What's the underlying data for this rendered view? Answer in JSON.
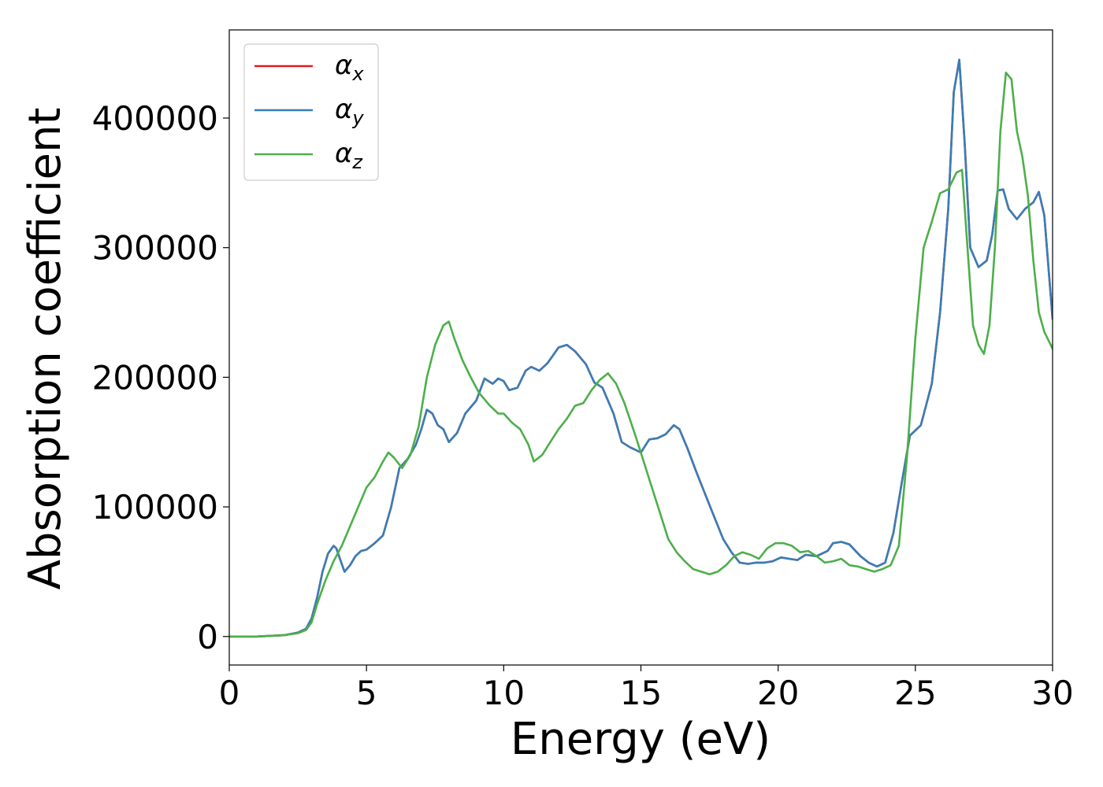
{
  "chart_data": {
    "type": "line",
    "title": "",
    "xlabel": "Energy (eV)",
    "ylabel": "Absorption coefficient",
    "xlim": [
      0,
      30
    ],
    "ylim": [
      -22000,
      468000
    ],
    "xticks": [
      0,
      5,
      10,
      15,
      20,
      25,
      30
    ],
    "xtick_labels": [
      "0",
      "5",
      "10",
      "15",
      "20",
      "25",
      "30"
    ],
    "yticks": [
      0,
      100000,
      200000,
      300000,
      400000
    ],
    "ytick_labels": [
      "0",
      "100000",
      "200000",
      "300000",
      "400000"
    ],
    "grid": false,
    "legend_position": "top-left",
    "series": [
      {
        "name": "α_x",
        "legend_base": "α",
        "legend_sub": "x",
        "color": "#e41a1c",
        "x": [
          0,
          1,
          2,
          2.5,
          2.8,
          3.0,
          3.2,
          3.4,
          3.6,
          3.8,
          3.9,
          4.0,
          4.2,
          4.4,
          4.6,
          4.8,
          5.0,
          5.3,
          5.6,
          5.9,
          6.2,
          6.5,
          6.8,
          7.0,
          7.2,
          7.4,
          7.6,
          7.8,
          8.0,
          8.3,
          8.6,
          9.0,
          9.3,
          9.6,
          9.8,
          10.0,
          10.2,
          10.5,
          10.8,
          11.0,
          11.3,
          11.6,
          12.0,
          12.3,
          12.6,
          12.8,
          13.0,
          13.3,
          13.6,
          14.0,
          14.3,
          14.6,
          15.0,
          15.3,
          15.6,
          15.9,
          16.2,
          16.4,
          16.7,
          17.0,
          17.3,
          17.6,
          18.0,
          18.3,
          18.6,
          18.9,
          19.2,
          19.5,
          19.8,
          20.1,
          20.4,
          20.7,
          21.0,
          21.4,
          21.8,
          22.0,
          22.3,
          22.6,
          23.0,
          23.3,
          23.6,
          23.9,
          24.2,
          24.5,
          24.8,
          25.2,
          25.6,
          25.9,
          26.2,
          26.4,
          26.6,
          26.8,
          27.0,
          27.3,
          27.6,
          27.8,
          28.0,
          28.2,
          28.4,
          28.7,
          29.0,
          29.3,
          29.5,
          29.7,
          30.0
        ],
        "y": [
          0,
          0,
          1000,
          3000,
          6000,
          14000,
          30000,
          50000,
          64000,
          70000,
          68000,
          62000,
          50000,
          55000,
          62000,
          66000,
          67000,
          72000,
          78000,
          100000,
          130000,
          137000,
          148000,
          160000,
          175000,
          172000,
          163000,
          160000,
          150000,
          157000,
          172000,
          182000,
          199000,
          195000,
          199000,
          197000,
          190000,
          192000,
          205000,
          208000,
          205000,
          211000,
          223000,
          225000,
          220000,
          215000,
          210000,
          196000,
          192000,
          172000,
          150000,
          146000,
          142000,
          152000,
          153000,
          156000,
          163000,
          160000,
          145000,
          128000,
          112000,
          96000,
          75000,
          65000,
          57000,
          56000,
          57000,
          57000,
          58000,
          61000,
          60000,
          59000,
          63000,
          62000,
          66000,
          72000,
          73000,
          71000,
          62000,
          57000,
          54000,
          57000,
          80000,
          118000,
          155000,
          163000,
          195000,
          250000,
          330000,
          420000,
          445000,
          380000,
          300000,
          285000,
          290000,
          310000,
          344000,
          345000,
          330000,
          322000,
          330000,
          335000,
          343000,
          325000,
          245000
        ]
      },
      {
        "name": "α_y",
        "legend_base": "α",
        "legend_sub": "y",
        "color": "#377eb8",
        "x": [
          0,
          1,
          2,
          2.5,
          2.8,
          3.0,
          3.2,
          3.4,
          3.6,
          3.8,
          3.9,
          4.0,
          4.2,
          4.4,
          4.6,
          4.8,
          5.0,
          5.3,
          5.6,
          5.9,
          6.2,
          6.5,
          6.8,
          7.0,
          7.2,
          7.4,
          7.6,
          7.8,
          8.0,
          8.3,
          8.6,
          9.0,
          9.3,
          9.6,
          9.8,
          10.0,
          10.2,
          10.5,
          10.8,
          11.0,
          11.3,
          11.6,
          12.0,
          12.3,
          12.6,
          12.8,
          13.0,
          13.3,
          13.6,
          14.0,
          14.3,
          14.6,
          15.0,
          15.3,
          15.6,
          15.9,
          16.2,
          16.4,
          16.7,
          17.0,
          17.3,
          17.6,
          18.0,
          18.3,
          18.6,
          18.9,
          19.2,
          19.5,
          19.8,
          20.1,
          20.4,
          20.7,
          21.0,
          21.4,
          21.8,
          22.0,
          22.3,
          22.6,
          23.0,
          23.3,
          23.6,
          23.9,
          24.2,
          24.5,
          24.8,
          25.2,
          25.6,
          25.9,
          26.2,
          26.4,
          26.6,
          26.8,
          27.0,
          27.3,
          27.6,
          27.8,
          28.0,
          28.2,
          28.4,
          28.7,
          29.0,
          29.3,
          29.5,
          29.7,
          30.0
        ],
        "y": [
          0,
          0,
          1000,
          3000,
          6000,
          14000,
          30000,
          50000,
          64000,
          70000,
          68000,
          62000,
          50000,
          55000,
          62000,
          66000,
          67000,
          72000,
          78000,
          100000,
          130000,
          137000,
          148000,
          160000,
          175000,
          172000,
          163000,
          160000,
          150000,
          157000,
          172000,
          182000,
          199000,
          195000,
          199000,
          197000,
          190000,
          192000,
          205000,
          208000,
          205000,
          211000,
          223000,
          225000,
          220000,
          215000,
          210000,
          196000,
          192000,
          172000,
          150000,
          146000,
          142000,
          152000,
          153000,
          156000,
          163000,
          160000,
          145000,
          128000,
          112000,
          96000,
          75000,
          65000,
          57000,
          56000,
          57000,
          57000,
          58000,
          61000,
          60000,
          59000,
          63000,
          62000,
          66000,
          72000,
          73000,
          71000,
          62000,
          57000,
          54000,
          57000,
          80000,
          118000,
          155000,
          163000,
          195000,
          250000,
          330000,
          420000,
          445000,
          380000,
          300000,
          285000,
          290000,
          310000,
          344000,
          345000,
          330000,
          322000,
          330000,
          335000,
          343000,
          325000,
          245000
        ]
      },
      {
        "name": "α_z",
        "legend_base": "α",
        "legend_sub": "z",
        "color": "#4daf4a",
        "x": [
          0,
          1,
          2,
          2.5,
          2.8,
          3.0,
          3.2,
          3.5,
          3.8,
          4.1,
          4.4,
          4.7,
          5.0,
          5.3,
          5.6,
          5.8,
          6.0,
          6.3,
          6.6,
          6.9,
          7.2,
          7.5,
          7.8,
          8.0,
          8.2,
          8.5,
          8.8,
          9.1,
          9.5,
          9.8,
          10.0,
          10.3,
          10.6,
          10.9,
          11.1,
          11.4,
          11.7,
          12.0,
          12.3,
          12.6,
          12.9,
          13.2,
          13.5,
          13.8,
          14.1,
          14.4,
          14.8,
          15.1,
          15.4,
          15.7,
          16.0,
          16.3,
          16.6,
          16.9,
          17.2,
          17.5,
          17.8,
          18.1,
          18.4,
          18.7,
          19.0,
          19.3,
          19.6,
          19.9,
          20.2,
          20.5,
          20.8,
          21.1,
          21.4,
          21.7,
          22.0,
          22.3,
          22.6,
          22.9,
          23.2,
          23.5,
          23.8,
          24.1,
          24.4,
          24.7,
          25.0,
          25.3,
          25.6,
          25.9,
          26.2,
          26.5,
          26.7,
          26.9,
          27.1,
          27.3,
          27.5,
          27.7,
          27.9,
          28.1,
          28.3,
          28.5,
          28.7,
          28.9,
          29.1,
          29.3,
          29.5,
          29.7,
          30.0
        ],
        "y": [
          0,
          0,
          1000,
          2500,
          5000,
          11000,
          25000,
          43000,
          58000,
          70000,
          85000,
          100000,
          115000,
          123000,
          135000,
          142000,
          138000,
          130000,
          140000,
          162000,
          200000,
          225000,
          240000,
          243000,
          230000,
          213000,
          200000,
          188000,
          178000,
          172000,
          172000,
          165000,
          160000,
          148000,
          135000,
          140000,
          150000,
          160000,
          168000,
          178000,
          180000,
          190000,
          198000,
          203000,
          195000,
          180000,
          155000,
          135000,
          115000,
          95000,
          75000,
          65000,
          58000,
          52000,
          50000,
          48000,
          50000,
          55000,
          62000,
          65000,
          63000,
          60000,
          68000,
          72000,
          72000,
          70000,
          65000,
          66000,
          62000,
          57000,
          58000,
          60000,
          55000,
          54000,
          52000,
          50000,
          52000,
          55000,
          70000,
          140000,
          230000,
          300000,
          320000,
          342000,
          345000,
          358000,
          360000,
          300000,
          240000,
          225000,
          218000,
          240000,
          300000,
          390000,
          435000,
          430000,
          390000,
          370000,
          340000,
          290000,
          250000,
          235000,
          222000
        ]
      }
    ]
  }
}
